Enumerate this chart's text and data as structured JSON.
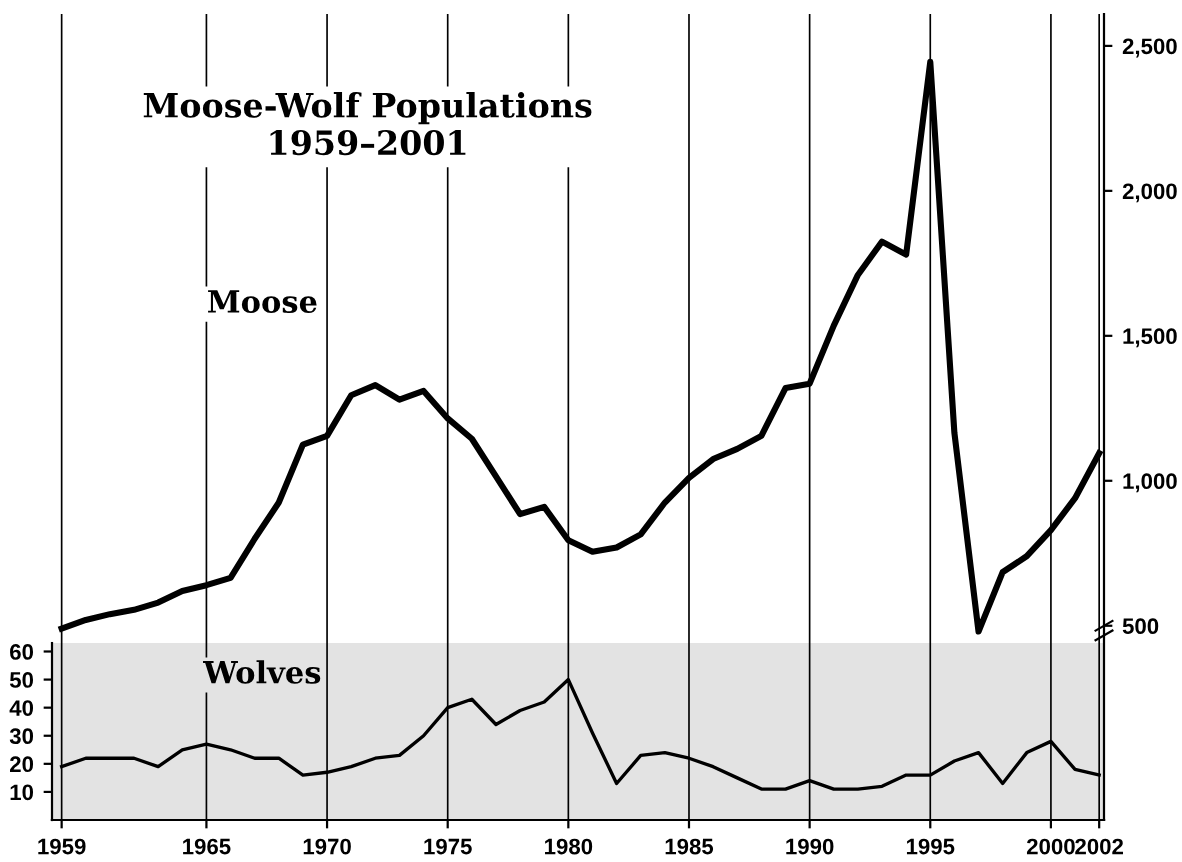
{
  "chart_data": {
    "type": "line",
    "title": "Moose-Wolf Populations\n1959–2001",
    "x": [
      1959,
      1960,
      1961,
      1962,
      1963,
      1964,
      1965,
      1966,
      1967,
      1968,
      1969,
      1970,
      1971,
      1972,
      1973,
      1974,
      1975,
      1976,
      1977,
      1978,
      1979,
      1980,
      1981,
      1982,
      1983,
      1984,
      1985,
      1986,
      1987,
      1988,
      1989,
      1990,
      1991,
      1992,
      1993,
      1994,
      1995,
      1996,
      1997,
      1998,
      1999,
      2000,
      2001,
      2002
    ],
    "series": [
      {
        "name": "Moose",
        "color": "#000000",
        "axis": "y2",
        "values": [
          490,
          520,
          540,
          555,
          580,
          620,
          640,
          665,
          800,
          925,
          1125,
          1155,
          1295,
          1330,
          1280,
          1310,
          1215,
          1145,
          1015,
          885,
          910,
          795,
          755,
          770,
          815,
          925,
          1010,
          1075,
          1110,
          1155,
          1320,
          1335,
          1535,
          1710,
          1825,
          1780,
          2445,
          1165,
          480,
          685,
          740,
          830,
          940,
          1095
        ]
      },
      {
        "name": "Wolves",
        "color": "#000000",
        "values": [
          19,
          22,
          22,
          22,
          19,
          25,
          27,
          25,
          22,
          22,
          16,
          17,
          19,
          22,
          23,
          30,
          40,
          43,
          34,
          39,
          42,
          50,
          31,
          13,
          23,
          24,
          22,
          19,
          15,
          11,
          11,
          14,
          11,
          11,
          12,
          16,
          16,
          21,
          24,
          13,
          24,
          28,
          18,
          16
        ]
      }
    ],
    "xlim": [
      1958.6,
      2002.2
    ],
    "xticks": [
      1959,
      1965,
      1970,
      1975,
      1980,
      1985,
      1990,
      1995,
      2000,
      2002
    ],
    "ylim": [
      0,
      287
    ],
    "yticks": [
      10,
      20,
      30,
      40,
      50,
      60
    ],
    "y2lim": [
      -170,
      2610
    ],
    "y2ticks": [
      {
        "value": 500,
        "label": "500"
      },
      {
        "value": 1000,
        "label": "1,000"
      },
      {
        "value": 1500,
        "label": "1,500"
      },
      {
        "value": 2000,
        "label": "2,000"
      },
      {
        "value": 2500,
        "label": "2,500"
      }
    ],
    "bands": [
      {
        "axis": "y",
        "from": 0,
        "to": 63,
        "color": "#e3e3e3"
      }
    ],
    "grid": "x",
    "legend": false,
    "marker": "none",
    "line_style": "solid"
  }
}
